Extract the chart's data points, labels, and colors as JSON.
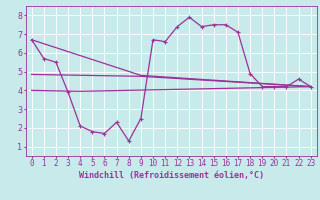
{
  "background_color": "#c8eaea",
  "grid_color": "#ffffff",
  "line_color": "#993399",
  "xlabel": "Windchill (Refroidissement éolien,°C)",
  "xlim": [
    -0.5,
    23.5
  ],
  "ylim": [
    0.5,
    8.5
  ],
  "xticks": [
    0,
    1,
    2,
    3,
    4,
    5,
    6,
    7,
    8,
    9,
    10,
    11,
    12,
    13,
    14,
    15,
    16,
    17,
    18,
    19,
    20,
    21,
    22,
    23
  ],
  "yticks": [
    1,
    2,
    3,
    4,
    5,
    6,
    7,
    8
  ],
  "series1_x": [
    0,
    1,
    2,
    3,
    4,
    5,
    6,
    7,
    8,
    9,
    10,
    11,
    12,
    13,
    14,
    15,
    16,
    17,
    18,
    19,
    20,
    21,
    22,
    23
  ],
  "series1_y": [
    6.7,
    5.7,
    5.5,
    3.9,
    2.1,
    1.8,
    1.7,
    2.3,
    1.3,
    2.5,
    6.7,
    6.6,
    7.4,
    7.9,
    7.4,
    7.5,
    7.5,
    7.1,
    4.9,
    4.2,
    4.2,
    4.2,
    4.6,
    4.2
  ],
  "series2_x": [
    0,
    9,
    23
  ],
  "series2_y": [
    6.7,
    4.8,
    4.2
  ],
  "series3_x": [
    0,
    9,
    23
  ],
  "series3_y": [
    4.85,
    4.75,
    4.2
  ],
  "series4_x": [
    0,
    4,
    23
  ],
  "series4_y": [
    4.0,
    3.95,
    4.2
  ],
  "font_size": 6,
  "tick_font_size": 5.5
}
